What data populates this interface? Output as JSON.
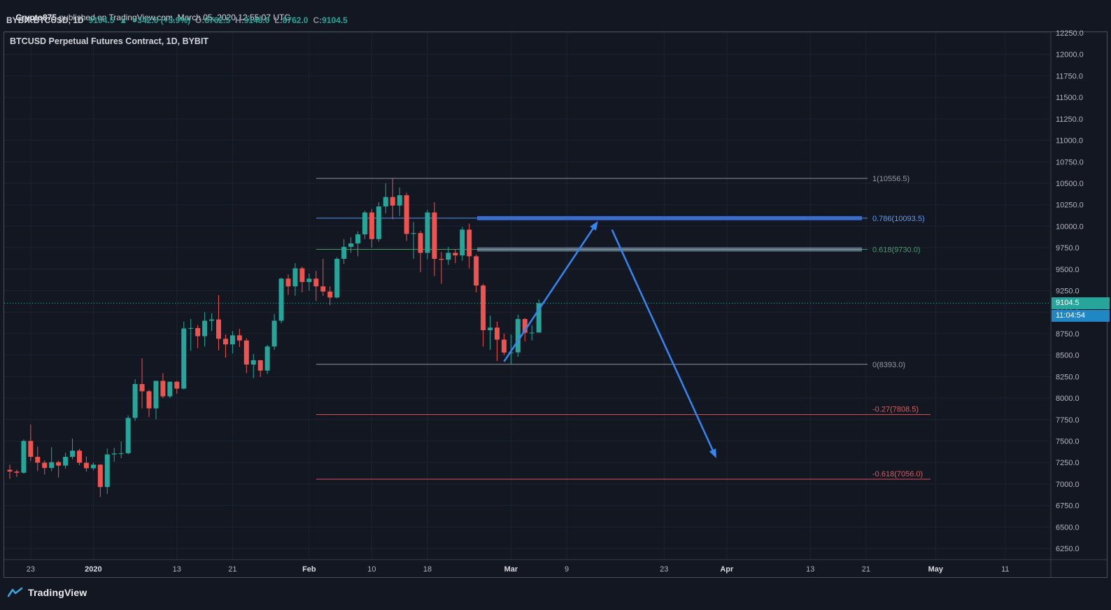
{
  "attribution": {
    "author": "Crypto875",
    "rest": " published on TradingView.com, March 05, 2020 12:55:07 UTC"
  },
  "symbol_bar": {
    "symbol": "BYBIT:BTCUSD, 1D",
    "last": "9104.5",
    "arrow": "▲",
    "change": "+342.0 (+3.9%)",
    "ohlc": [
      {
        "label": "O:",
        "value": "8762.5"
      },
      {
        "label": "H:",
        "value": "9148.0"
      },
      {
        "label": "L:",
        "value": "8762.0"
      },
      {
        "label": "C:",
        "value": "9104.5"
      }
    ]
  },
  "chart_title": "BTCUSD Perpetual Futures Contract, 1D, BYBIT",
  "price_tag": {
    "value": "9104.5"
  },
  "countdown_tag": {
    "value": "11:04:54"
  },
  "logo": {
    "text": "TradingView"
  },
  "chart_data": {
    "type": "candlestick",
    "title": "BTCUSD Perpetual Futures Contract, 1D, BYBIT",
    "symbol": "BYBIT:BTCUSD",
    "interval": "1D",
    "start_date": "2019-12-20",
    "y_axis": {
      "min": 6250,
      "max": 12250,
      "step": 250
    },
    "price_labels": [
      "12250.0",
      "12000.0",
      "11750.0",
      "11500.0",
      "11250.0",
      "11000.0",
      "10750.0",
      "10500.0",
      "10250.0",
      "10000.0",
      "9750.0",
      "9500.0",
      "9250.0",
      "9000.0",
      "8750.0",
      "8500.0",
      "8250.0",
      "8000.0",
      "7750.0",
      "7500.0",
      "7250.0",
      "7000.0",
      "6750.0",
      "6500.0",
      "6250.0"
    ],
    "time_labels": [
      {
        "text": "23",
        "day": 3,
        "major": false
      },
      {
        "text": "2020",
        "day": 12,
        "major": true
      },
      {
        "text": "13",
        "day": 24,
        "major": false
      },
      {
        "text": "21",
        "day": 32,
        "major": false
      },
      {
        "text": "Feb",
        "day": 43,
        "major": true
      },
      {
        "text": "10",
        "day": 52,
        "major": false
      },
      {
        "text": "18",
        "day": 60,
        "major": false
      },
      {
        "text": "Mar",
        "day": 72,
        "major": true
      },
      {
        "text": "9",
        "day": 80,
        "major": false
      },
      {
        "text": "23",
        "day": 94,
        "major": false
      },
      {
        "text": "Apr",
        "day": 103,
        "major": true
      },
      {
        "text": "13",
        "day": 115,
        "major": false
      },
      {
        "text": "21",
        "day": 123,
        "major": false
      },
      {
        "text": "May",
        "day": 133,
        "major": true
      },
      {
        "text": "11",
        "day": 143,
        "major": false
      }
    ],
    "last_price": 9104.5,
    "candles": [
      [
        7165,
        7225,
        7061,
        7145
      ],
      [
        7145,
        7168,
        7082,
        7131
      ],
      [
        7131,
        7518,
        7120,
        7501
      ],
      [
        7501,
        7693,
        7266,
        7316
      ],
      [
        7316,
        7435,
        7150,
        7248
      ],
      [
        7248,
        7275,
        7112,
        7187
      ],
      [
        7187,
        7428,
        7150,
        7254
      ],
      [
        7254,
        7272,
        7076,
        7214
      ],
      [
        7214,
        7365,
        7180,
        7316
      ],
      [
        7316,
        7528,
        7288,
        7388
      ],
      [
        7388,
        7408,
        7220,
        7247
      ],
      [
        7247,
        7320,
        7145,
        7183
      ],
      [
        7183,
        7250,
        7160,
        7225
      ],
      [
        7225,
        7230,
        6850,
        6965
      ],
      [
        6965,
        7413,
        6885,
        7344
      ],
      [
        7344,
        7420,
        7260,
        7355
      ],
      [
        7355,
        7495,
        7300,
        7358
      ],
      [
        7358,
        7800,
        7345,
        7769
      ],
      [
        7769,
        8220,
        7735,
        8163
      ],
      [
        8163,
        8463,
        7880,
        8079
      ],
      [
        8079,
        8095,
        7780,
        7880
      ],
      [
        7880,
        8200,
        7750,
        8200
      ],
      [
        8200,
        8290,
        8000,
        8020
      ],
      [
        8020,
        8195,
        8000,
        8190
      ],
      [
        8190,
        8200,
        8050,
        8110
      ],
      [
        8110,
        8890,
        8100,
        8810
      ],
      [
        8810,
        8920,
        8550,
        8815
      ],
      [
        8815,
        8850,
        8580,
        8720
      ],
      [
        8720,
        9000,
        8600,
        8900
      ],
      [
        8900,
        8985,
        8780,
        8915
      ],
      [
        8915,
        9198,
        8555,
        8690
      ],
      [
        8690,
        8740,
        8470,
        8625
      ],
      [
        8625,
        8780,
        8520,
        8730
      ],
      [
        8730,
        8805,
        8595,
        8670
      ],
      [
        8670,
        8695,
        8290,
        8390
      ],
      [
        8390,
        8515,
        8230,
        8440
      ],
      [
        8440,
        8445,
        8245,
        8320
      ],
      [
        8320,
        8620,
        8280,
        8600
      ],
      [
        8600,
        8980,
        8560,
        8900
      ],
      [
        8900,
        9400,
        8870,
        9390
      ],
      [
        9390,
        9440,
        9200,
        9300
      ],
      [
        9300,
        9570,
        9190,
        9510
      ],
      [
        9510,
        9530,
        9230,
        9350
      ],
      [
        9350,
        9450,
        9250,
        9390
      ],
      [
        9390,
        9480,
        9130,
        9300
      ],
      [
        9300,
        9620,
        9190,
        9240
      ],
      [
        9240,
        9300,
        9080,
        9170
      ],
      [
        9170,
        9640,
        9160,
        9620
      ],
      [
        9620,
        9850,
        9560,
        9760
      ],
      [
        9760,
        9870,
        9690,
        9800
      ],
      [
        9800,
        9940,
        9650,
        9905
      ],
      [
        9905,
        10180,
        9850,
        10160
      ],
      [
        10160,
        10200,
        9750,
        9850
      ],
      [
        9850,
        10280,
        9820,
        10230
      ],
      [
        10230,
        10500,
        10150,
        10340
      ],
      [
        10340,
        10556,
        10080,
        10240
      ],
      [
        10240,
        10450,
        10120,
        10360
      ],
      [
        10360,
        10390,
        9830,
        9910
      ],
      [
        9910,
        10050,
        9620,
        9920
      ],
      [
        9920,
        9945,
        9465,
        9690
      ],
      [
        9690,
        10190,
        9615,
        10160
      ],
      [
        10160,
        10280,
        9420,
        9620
      ],
      [
        9620,
        9700,
        9330,
        9610
      ],
      [
        9610,
        9760,
        9550,
        9690
      ],
      [
        9690,
        9730,
        9570,
        9660
      ],
      [
        9660,
        9990,
        9600,
        9960
      ],
      [
        9960,
        10030,
        9510,
        9650
      ],
      [
        9650,
        9670,
        9230,
        9310
      ],
      [
        9310,
        9330,
        8600,
        8790
      ],
      [
        8790,
        8960,
        8560,
        8820
      ],
      [
        8820,
        8890,
        8430,
        8680
      ],
      [
        8680,
        8750,
        8500,
        8530
      ],
      [
        8530,
        8740,
        8393,
        8532
      ],
      [
        8532,
        8970,
        8480,
        8920
      ],
      [
        8920,
        8930,
        8660,
        8760
      ],
      [
        8760,
        8845,
        8670,
        8762
      ],
      [
        8762.5,
        9148,
        8762,
        9104.5
      ]
    ],
    "fib_levels": [
      {
        "label": "1(10556.5)",
        "price": 10556.5,
        "color": "#9598a1",
        "band": false,
        "extended": false
      },
      {
        "label": "0.786(10093.5)",
        "price": 10093.5,
        "color": "#5b9cf6",
        "band": true,
        "band_color": "rgba(61,112,214,0.9)",
        "extended": false
      },
      {
        "label": "0.618(9730.0)",
        "price": 9730.0,
        "color": "#45a06a",
        "band": true,
        "band_color": "rgba(150,170,200,0.55)",
        "extended": false
      },
      {
        "label": "0(8393.0)",
        "price": 8393.0,
        "color": "#9598a1",
        "band": false,
        "extended": false
      },
      {
        "label": "-0.27(7808.5)",
        "price": 7808.5,
        "color": "#e05a5a",
        "band": false,
        "extended": true
      },
      {
        "label": "-0.618(7056.0)",
        "price": 7056.0,
        "color": "#e05a5a",
        "band": false,
        "extended": true
      }
    ],
    "arrows": [
      {
        "from_day": 71,
        "from_price": 8425,
        "to_day": 84.5,
        "to_price": 10060
      },
      {
        "from_day": 86.5,
        "from_price": 9960,
        "to_day": 101.5,
        "to_price": 7300
      }
    ],
    "colors": {
      "up": "#26a69a",
      "down": "#ef5350",
      "arrow": "#3686f1",
      "grid": "#1c2330",
      "axis_text": "#b2b5be",
      "bg": "#131722"
    }
  }
}
